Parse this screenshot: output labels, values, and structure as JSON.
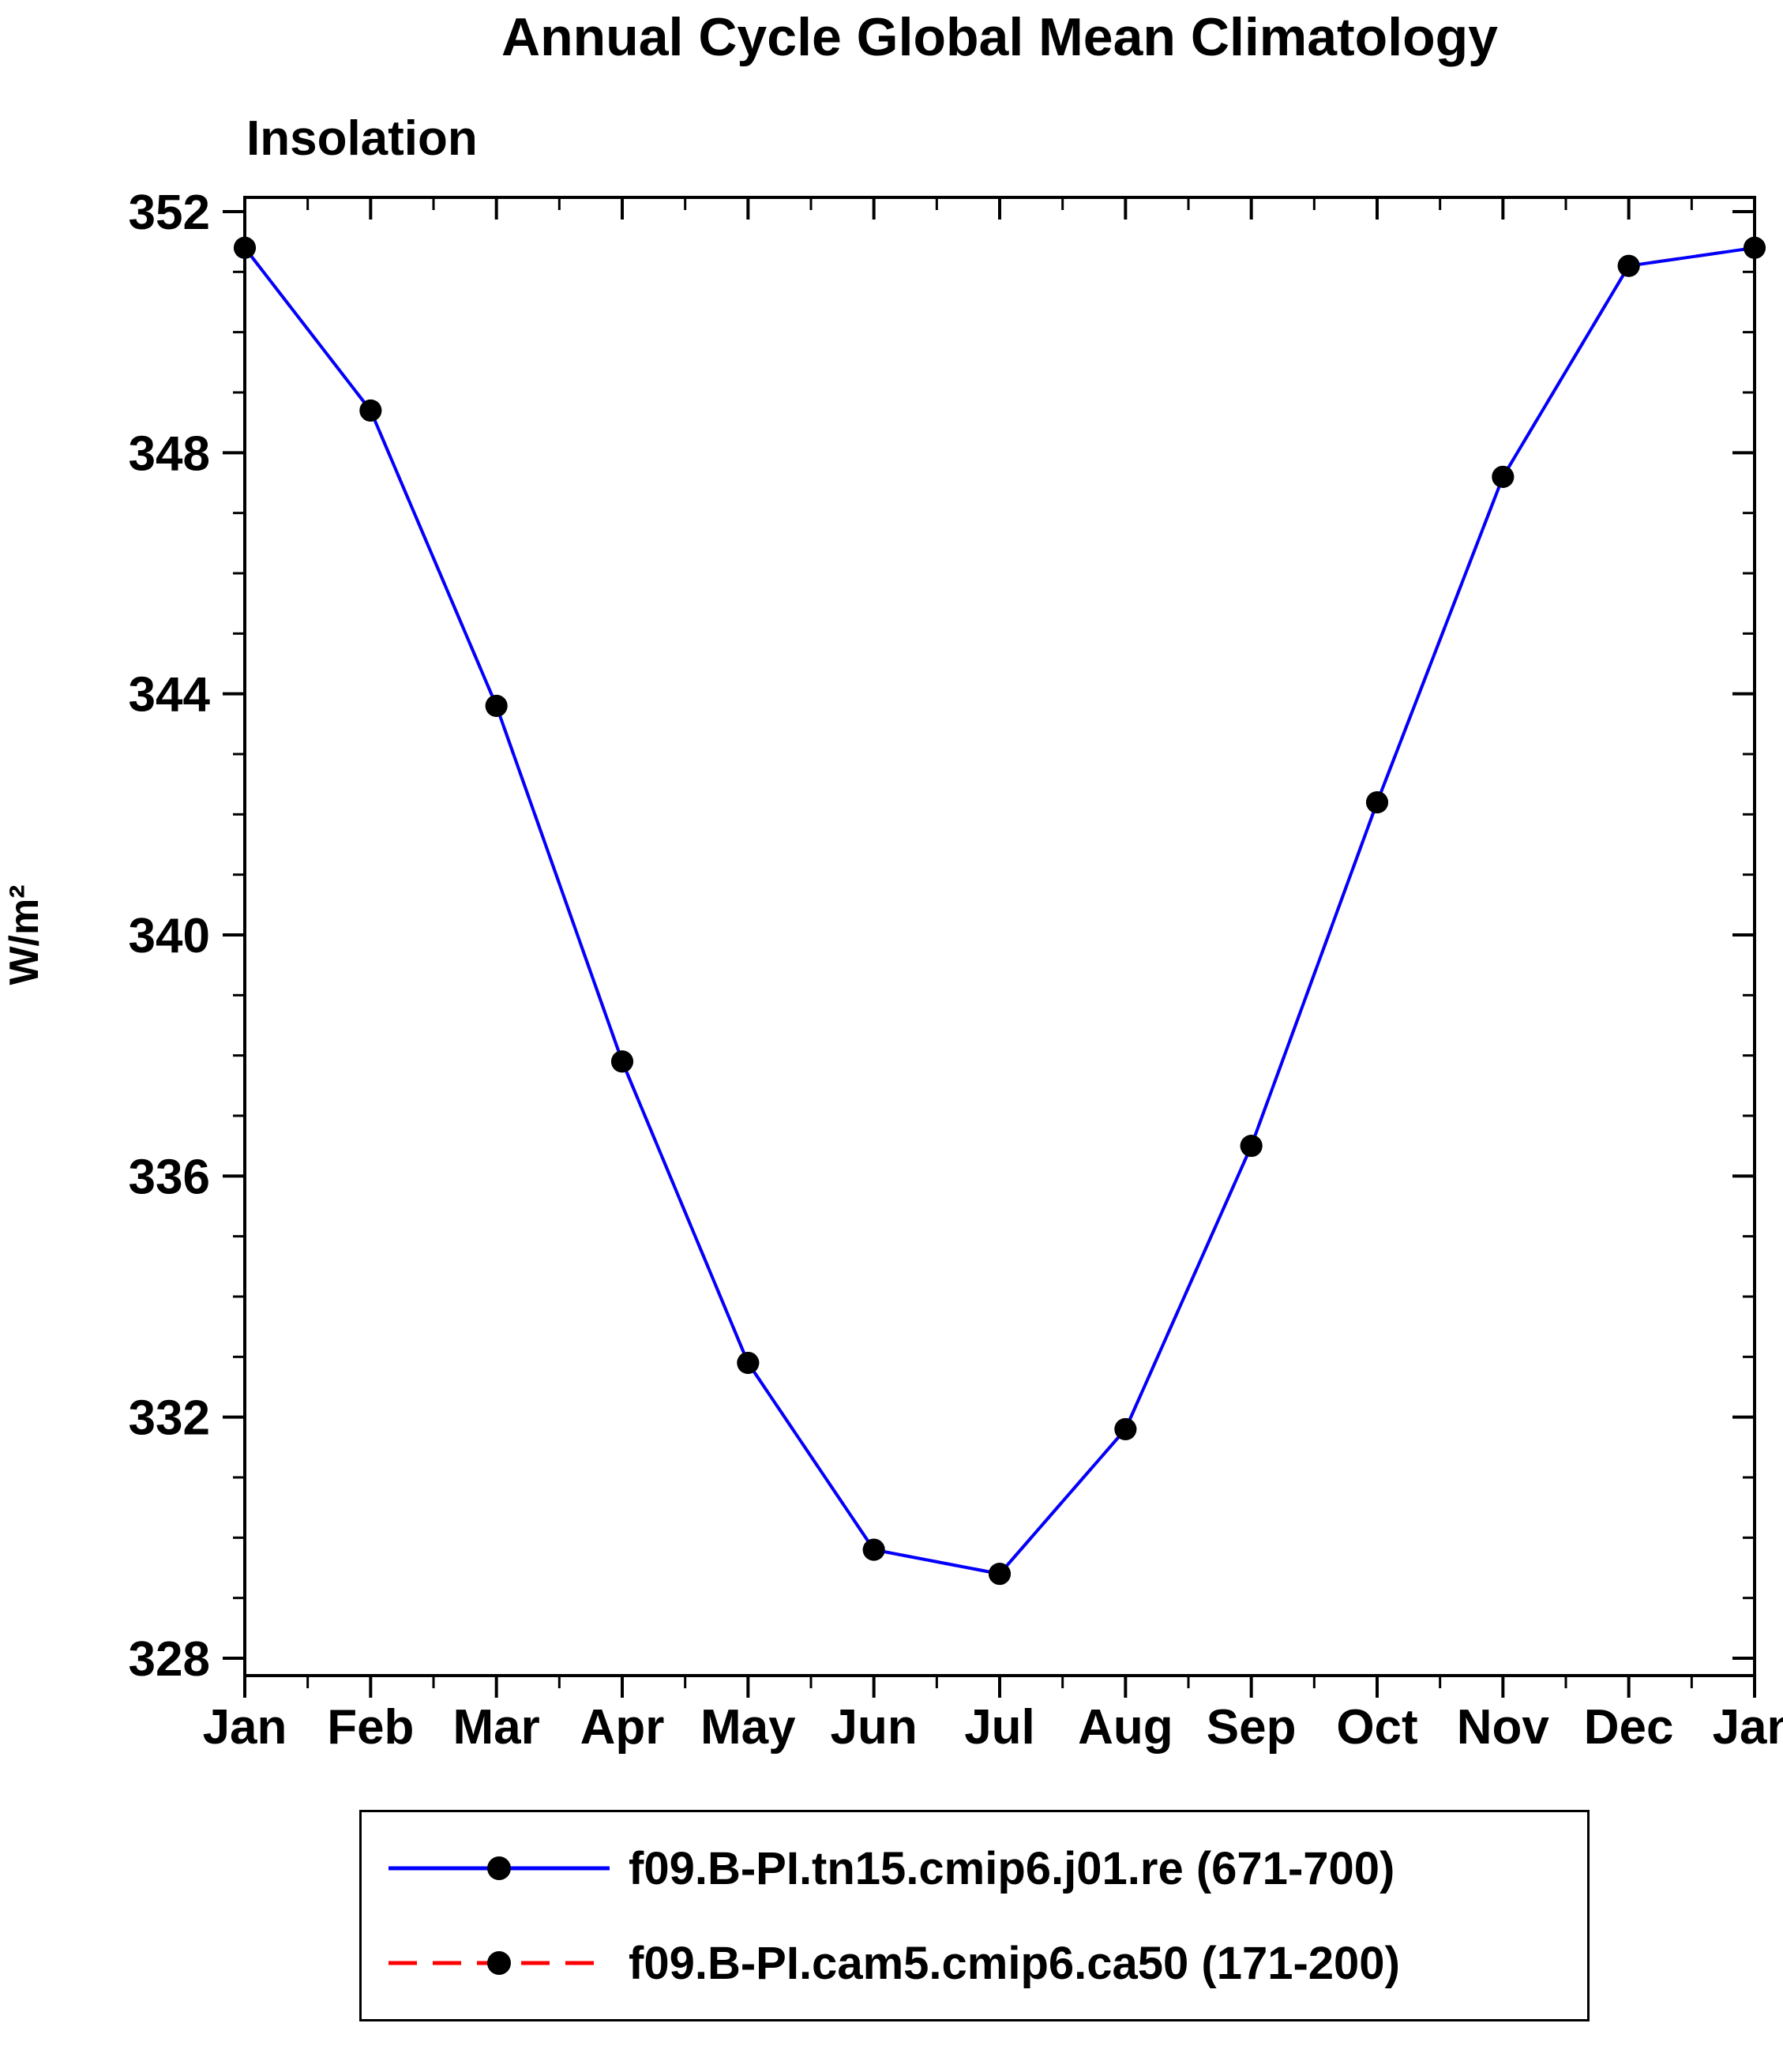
{
  "title": "Annual Cycle Global Mean Climatology",
  "subtitle": "Insolation",
  "ylabel": "W/m²",
  "chart_data": {
    "type": "line",
    "title": "Annual Cycle Global Mean Climatology",
    "subtitle": "Insolation",
    "xlabel": "",
    "ylabel": "W/m²",
    "categories": [
      "Jan",
      "Feb",
      "Mar",
      "Apr",
      "May",
      "Jun",
      "Jul",
      "Aug",
      "Sep",
      "Oct",
      "Nov",
      "Dec",
      "Jan"
    ],
    "ylim": [
      328,
      352
    ],
    "ytick_interval": 4,
    "yminor_interval": 1,
    "ytick_labels": [
      "328",
      "332",
      "336",
      "340",
      "344",
      "348",
      "352"
    ],
    "grid": false,
    "legend_position": "below",
    "axis_color": "#000000",
    "series": [
      {
        "name": "f09.B-PI.tn15.cmip6.j01.re (671-700)",
        "color": "#0000ff",
        "line_style": "solid",
        "marker": "filled-circle",
        "marker_color": "#000000",
        "values": [
          351.4,
          348.7,
          343.8,
          337.9,
          332.9,
          329.8,
          329.4,
          331.8,
          336.5,
          342.2,
          347.6,
          351.1,
          351.4
        ]
      },
      {
        "name": "f09.B-PI.cam5.cmip6.ca50 (171-200)",
        "color": "#ff0000",
        "line_style": "dashed",
        "marker": "filled-circle",
        "marker_color": "#000000",
        "values": [
          351.4,
          348.7,
          343.8,
          337.9,
          332.9,
          329.8,
          329.4,
          331.8,
          336.5,
          342.2,
          347.6,
          351.1,
          351.4
        ]
      }
    ]
  },
  "legend": {
    "entries": [
      {
        "label": "f09.B-PI.tn15.cmip6.j01.re (671-700)"
      },
      {
        "label": "f09.B-PI.cam5.cmip6.ca50 (171-200)"
      }
    ]
  }
}
